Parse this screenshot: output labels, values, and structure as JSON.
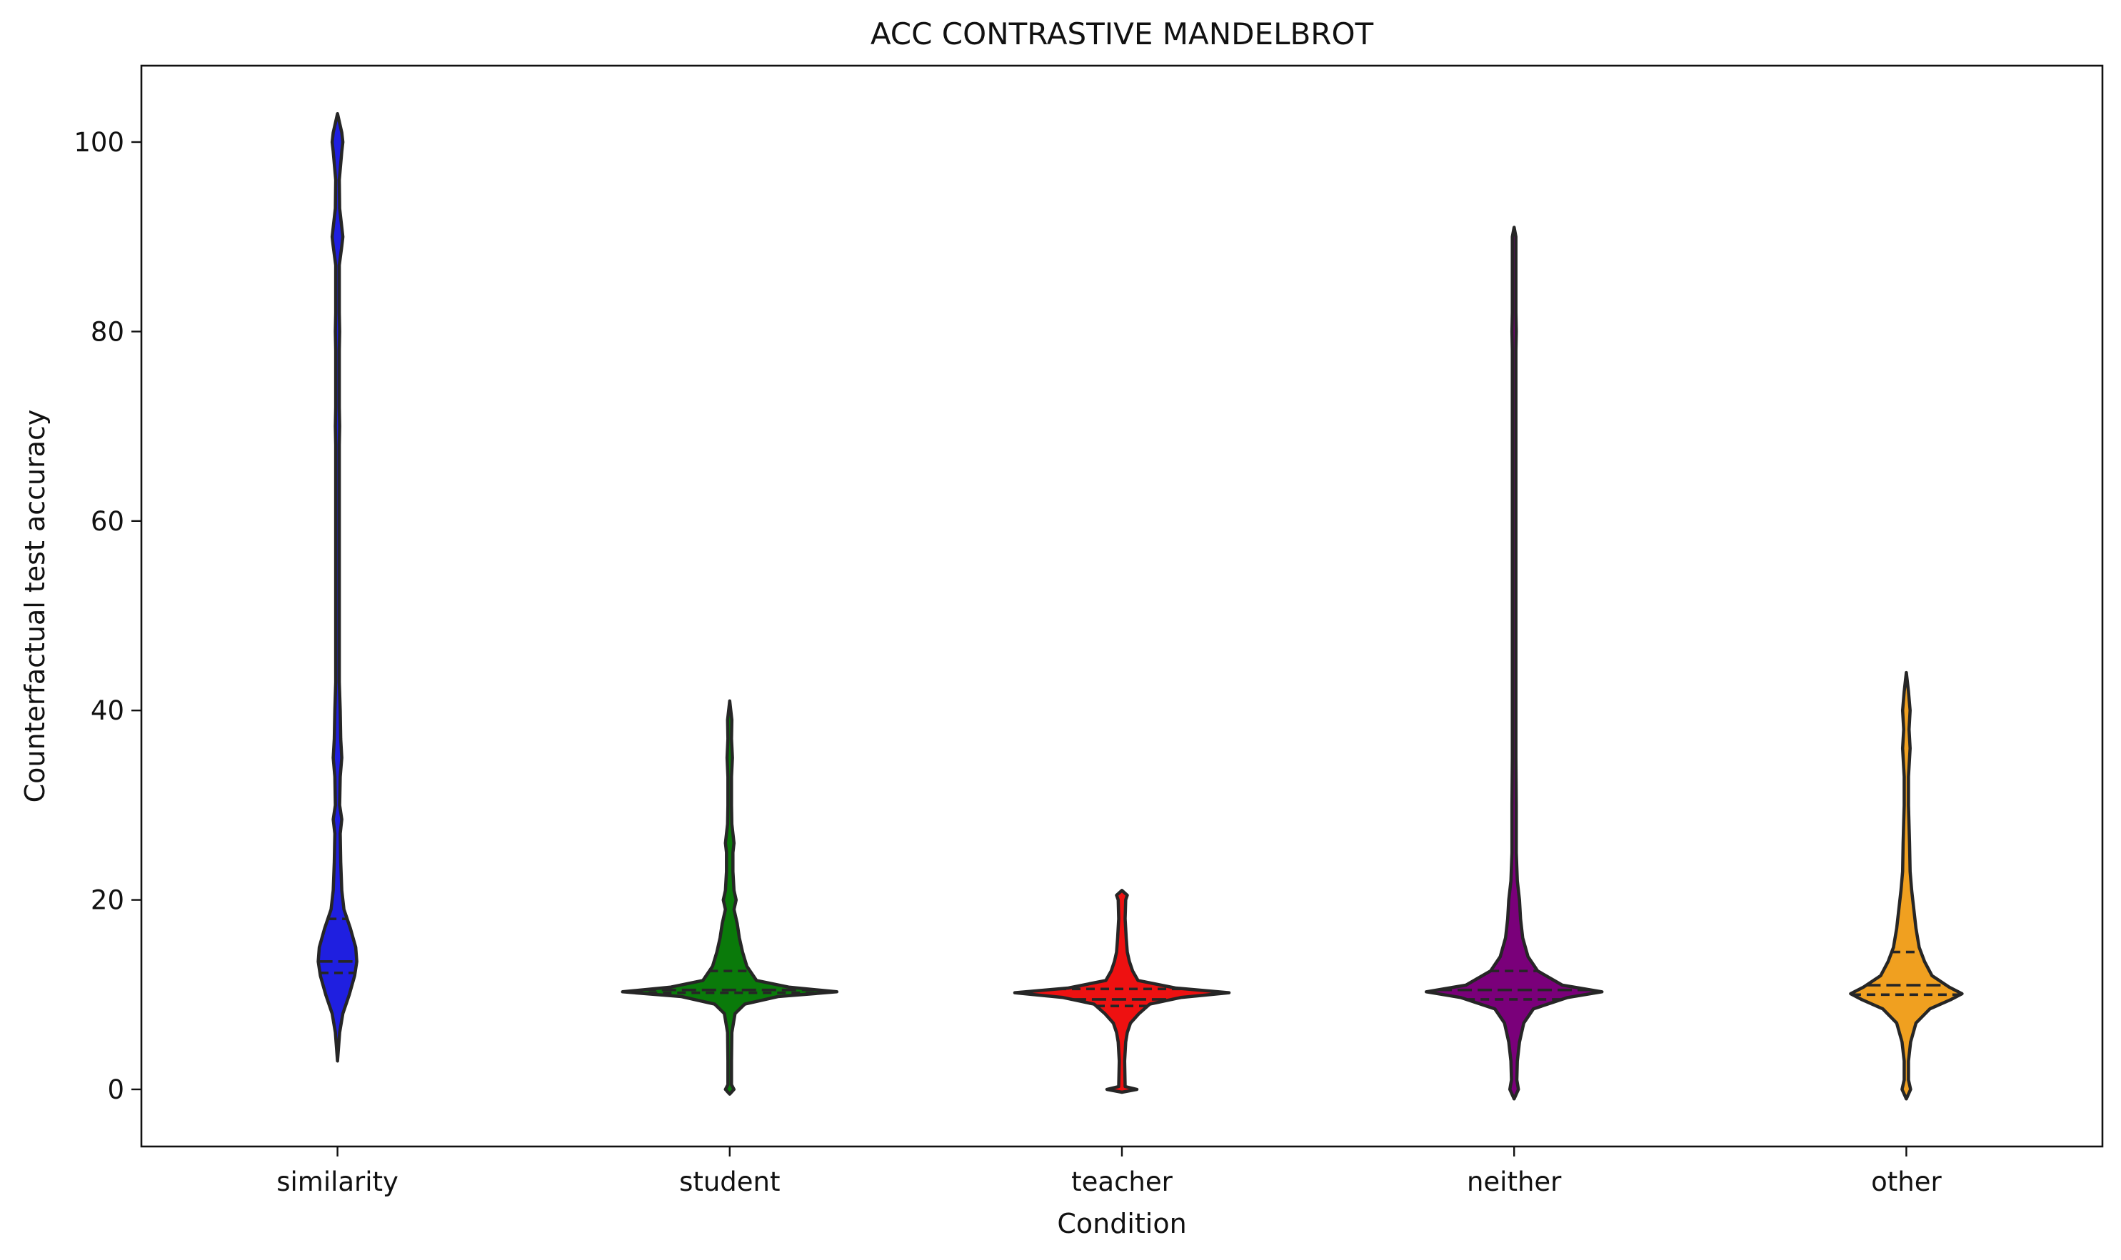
{
  "chart_data": {
    "type": "violin",
    "title": "ACC CONTRASTIVE MANDELBROT",
    "xlabel": "Condition",
    "ylabel": "Counterfactual test accuracy",
    "ylim": [
      -6,
      108
    ],
    "yticks": [
      0,
      20,
      40,
      60,
      80,
      100
    ],
    "grid": false,
    "categories": [
      "similarity",
      "student",
      "teacher",
      "neither",
      "other"
    ],
    "series": [
      {
        "category": "similarity",
        "color": "#1f1fe0",
        "min": 3,
        "max": 103,
        "q1": 12.3,
        "median": 13.5,
        "q3": 18,
        "profile": [
          [
            3,
            0
          ],
          [
            6,
            0.02
          ],
          [
            8,
            0.05
          ],
          [
            10,
            0.11
          ],
          [
            12,
            0.16
          ],
          [
            13.5,
            0.18
          ],
          [
            15,
            0.17
          ],
          [
            17,
            0.12
          ],
          [
            19,
            0.06
          ],
          [
            21,
            0.04
          ],
          [
            24,
            0.03
          ],
          [
            27,
            0.025
          ],
          [
            28.5,
            0.04
          ],
          [
            30,
            0.02
          ],
          [
            33,
            0.025
          ],
          [
            35,
            0.04
          ],
          [
            37,
            0.03
          ],
          [
            40,
            0.025
          ],
          [
            43,
            0.01
          ],
          [
            50,
            0.008
          ],
          [
            58,
            0.008
          ],
          [
            60,
            0.015
          ],
          [
            62,
            0.008
          ],
          [
            68,
            0.008
          ],
          [
            70,
            0.02
          ],
          [
            72,
            0.008
          ],
          [
            78,
            0.01
          ],
          [
            80,
            0.02
          ],
          [
            82,
            0.01
          ],
          [
            87,
            0.015
          ],
          [
            89,
            0.04
          ],
          [
            90,
            0.05
          ],
          [
            91,
            0.04
          ],
          [
            93,
            0.02
          ],
          [
            96,
            0.015
          ],
          [
            99,
            0.04
          ],
          [
            100,
            0.05
          ],
          [
            101,
            0.04
          ],
          [
            103,
            0
          ]
        ]
      },
      {
        "category": "student",
        "color": "#0a7a0a",
        "min": 0,
        "max": 41,
        "q1": 10.2,
        "median": 10.5,
        "q3": 12.5,
        "profile": [
          [
            -0.5,
            0
          ],
          [
            0,
            0.04
          ],
          [
            0.5,
            0.01
          ],
          [
            3,
            0.01
          ],
          [
            6,
            0.02
          ],
          [
            8,
            0.05
          ],
          [
            9,
            0.14
          ],
          [
            9.8,
            0.45
          ],
          [
            10.3,
            1.0
          ],
          [
            10.8,
            0.55
          ],
          [
            11.5,
            0.25
          ],
          [
            13,
            0.16
          ],
          [
            14.5,
            0.12
          ],
          [
            16,
            0.09
          ],
          [
            17.5,
            0.07
          ],
          [
            19,
            0.04
          ],
          [
            20,
            0.06
          ],
          [
            21,
            0.04
          ],
          [
            23,
            0.03
          ],
          [
            25,
            0.03
          ],
          [
            26,
            0.04
          ],
          [
            28,
            0.02
          ],
          [
            30,
            0.015
          ],
          [
            33,
            0.015
          ],
          [
            35,
            0.025
          ],
          [
            37,
            0.01
          ],
          [
            39,
            0.02
          ],
          [
            41,
            0
          ]
        ]
      },
      {
        "category": "teacher",
        "color": "#ee1111",
        "min": 0,
        "max": 21,
        "q1": 8.8,
        "median": 9.5,
        "q3": 10.6,
        "profile": [
          [
            -0.3,
            0
          ],
          [
            0,
            0.14
          ],
          [
            0.3,
            0.03
          ],
          [
            3,
            0.025
          ],
          [
            5,
            0.035
          ],
          [
            6,
            0.05
          ],
          [
            7,
            0.08
          ],
          [
            8,
            0.16
          ],
          [
            9,
            0.26
          ],
          [
            9.7,
            0.55
          ],
          [
            10.2,
            1.0
          ],
          [
            10.7,
            0.5
          ],
          [
            11.5,
            0.15
          ],
          [
            12.5,
            0.1
          ],
          [
            13.5,
            0.07
          ],
          [
            14.5,
            0.05
          ],
          [
            16,
            0.04
          ],
          [
            18,
            0.03
          ],
          [
            20,
            0.035
          ],
          [
            20.5,
            0.05
          ],
          [
            21,
            0
          ]
        ]
      },
      {
        "category": "neither",
        "color": "#7a007a",
        "min": -1,
        "max": 91,
        "q1": 9.5,
        "median": 10.5,
        "q3": 12.5,
        "profile": [
          [
            -1,
            0
          ],
          [
            0,
            0.04
          ],
          [
            1,
            0.025
          ],
          [
            3,
            0.03
          ],
          [
            5,
            0.05
          ],
          [
            7,
            0.09
          ],
          [
            8.5,
            0.18
          ],
          [
            9.7,
            0.5
          ],
          [
            10.3,
            0.82
          ],
          [
            11,
            0.45
          ],
          [
            12.5,
            0.22
          ],
          [
            14,
            0.13
          ],
          [
            16,
            0.08
          ],
          [
            18,
            0.06
          ],
          [
            20,
            0.05
          ],
          [
            22,
            0.03
          ],
          [
            25,
            0.02
          ],
          [
            28,
            0.02
          ],
          [
            30,
            0.02
          ],
          [
            35,
            0.012
          ],
          [
            40,
            0.01
          ],
          [
            45,
            0.012
          ],
          [
            50,
            0.01
          ],
          [
            60,
            0.01
          ],
          [
            70,
            0.01
          ],
          [
            78,
            0.008
          ],
          [
            80,
            0.02
          ],
          [
            82,
            0.008
          ],
          [
            90,
            0.008
          ],
          [
            91,
            0
          ]
        ]
      },
      {
        "category": "other",
        "color": "#f0a020",
        "min": -1,
        "max": 44,
        "q1": 10.0,
        "median": 11.0,
        "q3": 14.5,
        "profile": [
          [
            -1,
            0
          ],
          [
            0,
            0.04
          ],
          [
            1,
            0.02
          ],
          [
            3,
            0.02
          ],
          [
            5,
            0.04
          ],
          [
            7,
            0.09
          ],
          [
            8.5,
            0.22
          ],
          [
            9.5,
            0.42
          ],
          [
            10.1,
            0.52
          ],
          [
            10.8,
            0.4
          ],
          [
            12,
            0.24
          ],
          [
            13.5,
            0.17
          ],
          [
            15,
            0.12
          ],
          [
            17,
            0.09
          ],
          [
            19,
            0.07
          ],
          [
            21,
            0.05
          ],
          [
            23,
            0.035
          ],
          [
            26,
            0.03
          ],
          [
            30,
            0.02
          ],
          [
            33,
            0.02
          ],
          [
            36,
            0.035
          ],
          [
            38,
            0.025
          ],
          [
            40,
            0.035
          ],
          [
            42,
            0.02
          ],
          [
            44,
            0
          ]
        ]
      }
    ]
  }
}
